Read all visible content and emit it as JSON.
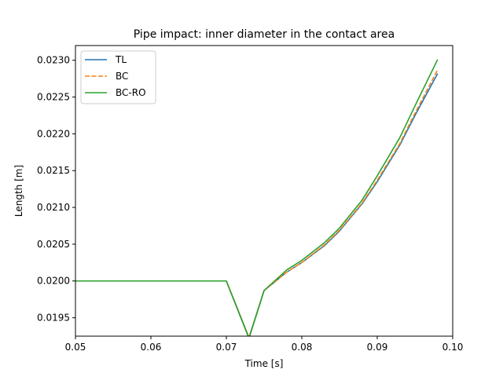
{
  "chart_data": {
    "type": "line",
    "title": "Pipe impact: inner diameter in the contact area",
    "xlabel": "Time [s]",
    "ylabel": "Length [m]",
    "xlim": [
      0.05,
      0.1
    ],
    "ylim": [
      0.01925,
      0.0232
    ],
    "x_ticks": [
      0.05,
      0.06,
      0.07,
      0.08,
      0.09,
      0.1
    ],
    "x_tick_labels": [
      "0.05",
      "0.06",
      "0.07",
      "0.08",
      "0.09",
      "0.10"
    ],
    "y_ticks": [
      0.0195,
      0.02,
      0.0205,
      0.021,
      0.0215,
      0.022,
      0.0225,
      0.023
    ],
    "y_tick_labels": [
      "0.0195",
      "0.0200",
      "0.0205",
      "0.0210",
      "0.0215",
      "0.0220",
      "0.0225",
      "0.0230"
    ],
    "grid": false,
    "legend_position": "top-left",
    "series": [
      {
        "name": "TL",
        "color": "#1f77b4",
        "style": "solid",
        "x": [
          0.05,
          0.07,
          0.073,
          0.075,
          0.078,
          0.08,
          0.083,
          0.085,
          0.088,
          0.09,
          0.093,
          0.095,
          0.098
        ],
        "y": [
          0.02,
          0.02,
          0.01923,
          0.01987,
          0.02012,
          0.02025,
          0.02048,
          0.02068,
          0.02105,
          0.02135,
          0.02185,
          0.02225,
          0.02282
        ]
      },
      {
        "name": "BC",
        "color": "#ff7f0e",
        "style": "dashed",
        "x": [
          0.05,
          0.07,
          0.073,
          0.075,
          0.078,
          0.08,
          0.083,
          0.085,
          0.088,
          0.09,
          0.093,
          0.095,
          0.098
        ],
        "y": [
          0.02,
          0.02,
          0.01923,
          0.01987,
          0.02012,
          0.02025,
          0.02049,
          0.02069,
          0.02106,
          0.02137,
          0.02187,
          0.02228,
          0.02287
        ]
      },
      {
        "name": "BC-RO",
        "color": "#2ca02c",
        "style": "solid",
        "x": [
          0.05,
          0.07,
          0.073,
          0.075,
          0.078,
          0.08,
          0.083,
          0.085,
          0.088,
          0.09,
          0.093,
          0.095,
          0.098
        ],
        "y": [
          0.02,
          0.02,
          0.01922,
          0.01987,
          0.02015,
          0.02028,
          0.02052,
          0.02072,
          0.0211,
          0.02143,
          0.02195,
          0.02238,
          0.02301
        ]
      }
    ]
  }
}
